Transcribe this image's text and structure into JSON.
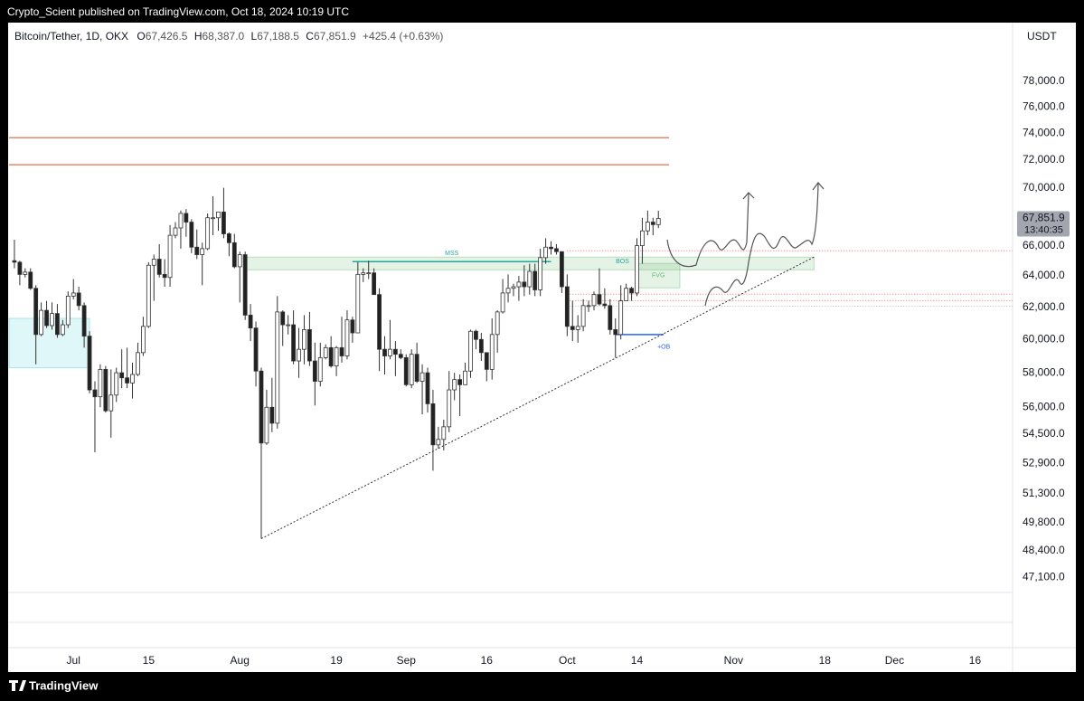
{
  "header": {
    "publisher": "Crypto_Scient published on TradingView.com, Oct 18, 2024 10:19 UTC",
    "brand": "TradingView"
  },
  "chart_data": {
    "type": "candlestick",
    "legend": {
      "symbol": "Bitcoin/Tether, 1D, OKX",
      "o_label": "O",
      "o": "67,426.5",
      "h_label": "H",
      "h": "68,387.0",
      "l_label": "L",
      "l": "67,188.5",
      "c_label": "C",
      "c": "67,851.9",
      "change": "+425.4 (+0.63%)"
    },
    "y_axis_label": "USDT",
    "log_scale": true,
    "grid": false,
    "up_color": "#ffffff",
    "down_color": "#222222",
    "outline_color": "#333333",
    "last_price": {
      "value": 67851.9,
      "label": "67,851.9"
    },
    "countdown": "13:40:35",
    "ylim": [
      43900,
      82800
    ],
    "yticks": [
      {
        "value": 47100,
        "label": "47,100.0"
      },
      {
        "value": 48400,
        "label": "48,400.0"
      },
      {
        "value": 49800,
        "label": "49,800.0"
      },
      {
        "value": 51300,
        "label": "51,300.0"
      },
      {
        "value": 52900,
        "label": "52,900.0"
      },
      {
        "value": 54500,
        "label": "54,500.0"
      },
      {
        "value": 56000,
        "label": "56,000.0"
      },
      {
        "value": 58000,
        "label": "58,000.0"
      },
      {
        "value": 60000,
        "label": "60,000.0"
      },
      {
        "value": 62000,
        "label": "62,000.0"
      },
      {
        "value": 64000,
        "label": "64,000.0"
      },
      {
        "value": 66000,
        "label": "66,000.0"
      },
      {
        "value": 70000,
        "label": "70,000.0"
      },
      {
        "value": 72000,
        "label": "72,000.0"
      },
      {
        "value": 74000,
        "label": "74,000.0"
      },
      {
        "value": 76000,
        "label": "76,000.0"
      },
      {
        "value": 78000,
        "label": "78,000.0"
      }
    ],
    "xlim": [
      "2024-06-19",
      "2024-12-23"
    ],
    "xticks": [
      {
        "value": "2024-07-01",
        "label": "Jul"
      },
      {
        "value": "2024-07-15",
        "label": "15"
      },
      {
        "value": "2024-08-01",
        "label": "Aug"
      },
      {
        "value": "2024-08-19",
        "label": "19"
      },
      {
        "value": "2024-09-01",
        "label": "Sep"
      },
      {
        "value": "2024-09-16",
        "label": "16"
      },
      {
        "value": "2024-10-01",
        "label": "Oct"
      },
      {
        "value": "2024-10-14",
        "label": "14"
      },
      {
        "value": "2024-11-01",
        "label": "Nov"
      },
      {
        "value": "2024-11-18",
        "label": "18"
      },
      {
        "value": "2024-12-01",
        "label": "Dec"
      },
      {
        "value": "2024-12-16",
        "label": "16"
      }
    ],
    "candles": {
      "x": [
        "2024-06-20",
        "2024-06-21",
        "2024-06-22",
        "2024-06-23",
        "2024-06-24",
        "2024-06-25",
        "2024-06-26",
        "2024-06-27",
        "2024-06-28",
        "2024-06-29",
        "2024-06-30",
        "2024-07-01",
        "2024-07-02",
        "2024-07-03",
        "2024-07-04",
        "2024-07-05",
        "2024-07-06",
        "2024-07-07",
        "2024-07-08",
        "2024-07-09",
        "2024-07-10",
        "2024-07-11",
        "2024-07-12",
        "2024-07-13",
        "2024-07-14",
        "2024-07-15",
        "2024-07-16",
        "2024-07-17",
        "2024-07-18",
        "2024-07-19",
        "2024-07-20",
        "2024-07-21",
        "2024-07-22",
        "2024-07-23",
        "2024-07-24",
        "2024-07-25",
        "2024-07-26",
        "2024-07-27",
        "2024-07-28",
        "2024-07-29",
        "2024-07-30",
        "2024-07-31",
        "2024-08-01",
        "2024-08-02",
        "2024-08-03",
        "2024-08-04",
        "2024-08-05",
        "2024-08-06",
        "2024-08-07",
        "2024-08-08",
        "2024-08-09",
        "2024-08-10",
        "2024-08-11",
        "2024-08-12",
        "2024-08-13",
        "2024-08-14",
        "2024-08-15",
        "2024-08-16",
        "2024-08-17",
        "2024-08-18",
        "2024-08-19",
        "2024-08-20",
        "2024-08-21",
        "2024-08-22",
        "2024-08-23",
        "2024-08-24",
        "2024-08-25",
        "2024-08-26",
        "2024-08-27",
        "2024-08-28",
        "2024-08-29",
        "2024-08-30",
        "2024-08-31",
        "2024-09-01",
        "2024-09-02",
        "2024-09-03",
        "2024-09-04",
        "2024-09-05",
        "2024-09-06",
        "2024-09-07",
        "2024-09-08",
        "2024-09-09",
        "2024-09-10",
        "2024-09-11",
        "2024-09-12",
        "2024-09-13",
        "2024-09-14",
        "2024-09-15",
        "2024-09-16",
        "2024-09-17",
        "2024-09-18",
        "2024-09-19",
        "2024-09-20",
        "2024-09-21",
        "2024-09-22",
        "2024-09-23",
        "2024-09-24",
        "2024-09-25",
        "2024-09-26",
        "2024-09-27",
        "2024-09-28",
        "2024-09-29",
        "2024-09-30",
        "2024-10-01",
        "2024-10-02",
        "2024-10-03",
        "2024-10-04",
        "2024-10-05",
        "2024-10-06",
        "2024-10-07",
        "2024-10-08",
        "2024-10-09",
        "2024-10-10",
        "2024-10-11",
        "2024-10-12",
        "2024-10-13",
        "2024-10-14",
        "2024-10-15",
        "2024-10-16",
        "2024-10-17",
        "2024-10-18"
      ],
      "open": [
        65000,
        64900,
        64100,
        64250,
        63200,
        60300,
        61800,
        60850,
        61600,
        60300,
        60900,
        62700,
        62900,
        62100,
        60200,
        57000,
        56600,
        58200,
        55800,
        56700,
        58000,
        57700,
        57400,
        57900,
        59200,
        60800,
        64700,
        65100,
        64100,
        63900,
        66700,
        67200,
        68200,
        67600,
        65900,
        65400,
        65800,
        67900,
        67900,
        68300,
        66800,
        66200,
        64600,
        65400,
        61500,
        60700,
        58100,
        54000,
        56000,
        55100,
        61700,
        60900,
        60900,
        58700,
        59400,
        60600,
        58700,
        57500,
        58900,
        59500,
        58400,
        59500,
        59000,
        61200,
        60400,
        64100,
        64200,
        64200,
        62800,
        59400,
        59000,
        59400,
        59100,
        58900,
        57300,
        59100,
        57500,
        58000,
        56200,
        53900,
        54200,
        54900,
        57000,
        57600,
        57300,
        58100,
        60500,
        60000,
        59200,
        58200,
        60300,
        61700,
        62900,
        63200,
        63300,
        63600,
        63300,
        64300,
        63100,
        65200,
        65900,
        65800,
        65600,
        63300,
        60800,
        60600,
        60800,
        62100,
        62100,
        62800,
        62200,
        62100,
        60600,
        60300,
        62400,
        63200,
        62900,
        66000,
        67000,
        67600,
        67426.5
      ],
      "high": [
        66400,
        65000,
        64500,
        64500,
        63400,
        62300,
        62400,
        62300,
        62200,
        61200,
        63000,
        63800,
        63300,
        62300,
        60500,
        57500,
        58500,
        58400,
        58200,
        58300,
        59400,
        59500,
        58600,
        59800,
        61400,
        64900,
        65400,
        66100,
        65100,
        67400,
        67600,
        68400,
        68500,
        67800,
        67100,
        66200,
        68200,
        69400,
        68300,
        70000,
        66900,
        66800,
        65600,
        65600,
        62200,
        61100,
        58300,
        57000,
        57700,
        62700,
        61800,
        61500,
        61800,
        60700,
        61500,
        61700,
        59800,
        59800,
        59700,
        60200,
        59600,
        61400,
        61800,
        61400,
        64900,
        64500,
        65000,
        64500,
        63200,
        60200,
        61200,
        59900,
        59400,
        59100,
        59400,
        59800,
        58500,
        58300,
        57000,
        54900,
        55300,
        58100,
        58000,
        57900,
        58600,
        60600,
        60600,
        60400,
        59200,
        61300,
        61800,
        63800,
        64100,
        63500,
        64000,
        64700,
        64800,
        64800,
        65800,
        66500,
        66300,
        66100,
        65600,
        64100,
        62400,
        61500,
        62500,
        62400,
        63000,
        64500,
        63200,
        62500,
        61300,
        63400,
        63500,
        63300,
        66500,
        67900,
        68400,
        67900,
        68387
      ],
      "low": [
        64500,
        63400,
        63900,
        63100,
        58500,
        60200,
        60700,
        60600,
        60100,
        60200,
        60700,
        62500,
        61800,
        59500,
        56800,
        53500,
        56000,
        55700,
        54300,
        56300,
        57100,
        57100,
        56500,
        57800,
        59000,
        60700,
        62400,
        63900,
        63300,
        63300,
        66500,
        65800,
        66600,
        65500,
        65100,
        63400,
        65700,
        66700,
        67000,
        66500,
        65300,
        64500,
        62300,
        61200,
        59900,
        57200,
        49000,
        53900,
        54600,
        54800,
        59600,
        60300,
        58500,
        57700,
        58500,
        58400,
        56100,
        57200,
        58800,
        58300,
        57800,
        58600,
        58800,
        59800,
        60400,
        63600,
        63800,
        62800,
        58100,
        57900,
        58800,
        57800,
        58800,
        57200,
        57100,
        57400,
        55600,
        55700,
        52500,
        53700,
        53600,
        54600,
        56400,
        55500,
        57300,
        57700,
        59400,
        58700,
        57500,
        57600,
        59200,
        61600,
        62300,
        62700,
        62400,
        62700,
        62800,
        62700,
        62700,
        64800,
        65400,
        65400,
        62900,
        60200,
        59900,
        59800,
        60500,
        61700,
        61800,
        62100,
        61900,
        60300,
        58900,
        60000,
        62400,
        62400,
        62700,
        64800,
        66700,
        66700,
        67188.5
      ],
      "close": [
        64900,
        64100,
        64250,
        63200,
        60300,
        61800,
        60850,
        61600,
        60300,
        60900,
        62700,
        62900,
        62100,
        60200,
        57000,
        56600,
        58200,
        55800,
        56700,
        58000,
        57700,
        57400,
        57900,
        59200,
        60800,
        64700,
        65100,
        64100,
        63900,
        66700,
        67200,
        68200,
        67600,
        65900,
        65400,
        65800,
        67900,
        67900,
        68300,
        66800,
        66200,
        64600,
        65400,
        61500,
        60700,
        58100,
        54000,
        56000,
        55100,
        61700,
        60900,
        60900,
        58700,
        59400,
        60600,
        58700,
        57500,
        58900,
        59500,
        58400,
        59500,
        59000,
        61200,
        60400,
        64100,
        64200,
        64200,
        62800,
        59400,
        59000,
        59400,
        59100,
        58900,
        57300,
        59100,
        57500,
        58000,
        56200,
        53900,
        54200,
        54900,
        57000,
        57600,
        57300,
        58100,
        60500,
        60000,
        59200,
        58200,
        60300,
        61700,
        62900,
        63200,
        63300,
        63600,
        63300,
        64300,
        63100,
        65200,
        65900,
        65800,
        65600,
        63300,
        60800,
        60600,
        60800,
        62100,
        62100,
        62800,
        62200,
        62100,
        60600,
        60300,
        62400,
        63200,
        62900,
        66000,
        67000,
        67600,
        67426.5,
        67851.9
      ]
    },
    "levels": [
      {
        "value": 73660,
        "start": "2024-06-19",
        "end": "2024-10-20",
        "color": "#e8866c"
      },
      {
        "value": 71660,
        "start": "2024-06-19",
        "end": "2024-10-20",
        "color": "#e8866c"
      }
    ],
    "dotted_levels": [
      {
        "value": 65660,
        "start": "2024-10-01",
        "end": "2024-12-23",
        "color": "#e57373"
      },
      {
        "value": 62820,
        "start": "2024-10-01",
        "end": "2024-12-23",
        "color": "#e57373"
      },
      {
        "value": 62410,
        "start": "2024-10-01",
        "end": "2024-12-23",
        "color": "#e57373"
      },
      {
        "value": 62060,
        "start": "2024-10-01",
        "end": "2024-12-23",
        "color": "#bdbdbd"
      }
    ],
    "zones": [
      {
        "from": 64400,
        "to": 65240,
        "start": "2024-08-02",
        "end": "2024-11-16",
        "color": "#4caf50"
      },
      {
        "from": 58300,
        "to": 61300,
        "start": "2024-06-19",
        "end": "2024-07-04",
        "color": "#26c6da"
      },
      {
        "from": 63230,
        "to": 64820,
        "start": "2024-10-14",
        "end": "2024-10-22",
        "color": "#4caf50"
      }
    ],
    "segments": [
      {
        "value": 64940,
        "start": "2024-08-22",
        "end": "2024-09-28",
        "color": "#26a69a"
      },
      {
        "value": 60300,
        "start": "2024-10-10",
        "end": "2024-10-19",
        "color": "#2962ff"
      }
    ],
    "trendline": [
      {
        "x": "2024-08-05",
        "y": 49000
      },
      {
        "x": "2024-11-16",
        "y": 65240
      }
    ],
    "annotations": [
      "MSS",
      "BOS",
      "FVG",
      "+OB"
    ]
  }
}
